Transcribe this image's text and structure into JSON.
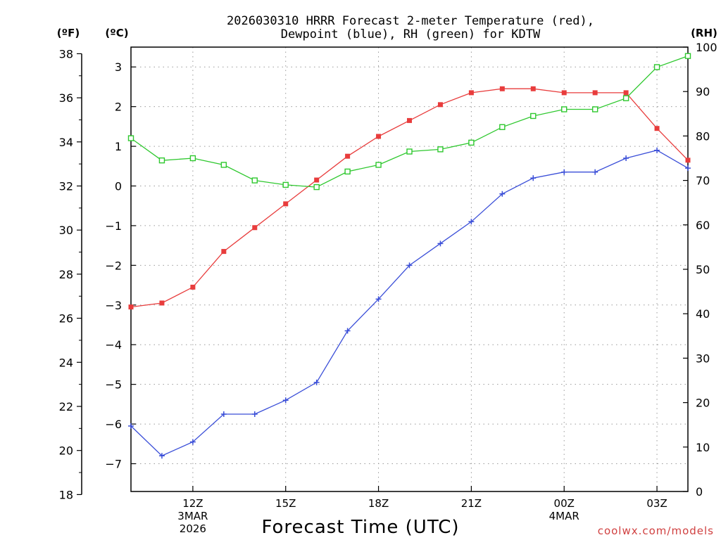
{
  "chart_data": {
    "type": "line",
    "title_line1": "2026030310 HRRR Forecast 2-meter Temperature (red),",
    "title_line2": "Dewpoint (blue), RH (green) for KDTW",
    "unit_left_f": "(ºF)",
    "unit_left_c": "(ºC)",
    "unit_right": "(RH)",
    "xlabel": "Forecast Time (UTC)",
    "credit": "coolwx.com/models",
    "x_hours": [
      10,
      11,
      12,
      13,
      14,
      15,
      16,
      17,
      18,
      19,
      20,
      21,
      22,
      23,
      24,
      25,
      26,
      27,
      28
    ],
    "x_ticks": [
      {
        "hour": 12,
        "lines": [
          "12Z",
          "3MAR",
          "2026"
        ]
      },
      {
        "hour": 15,
        "lines": [
          "15Z"
        ]
      },
      {
        "hour": 18,
        "lines": [
          "18Z"
        ]
      },
      {
        "hour": 21,
        "lines": [
          "21Z"
        ]
      },
      {
        "hour": 24,
        "lines": [
          "00Z",
          "4MAR"
        ]
      },
      {
        "hour": 27,
        "lines": [
          "03Z"
        ]
      }
    ],
    "xlim": [
      10,
      28
    ],
    "celsius_axis": {
      "ylim": [
        -7.7,
        3.5
      ],
      "ticks": [
        3,
        2,
        1,
        0,
        -1,
        -2,
        -3,
        -4,
        -5,
        -6,
        -7
      ],
      "tick_labels": [
        "3",
        "2",
        "1",
        "0",
        "−1",
        "−2",
        "−3",
        "−4",
        "−5",
        "−6",
        "−7"
      ]
    },
    "fahrenheit_axis": {
      "ticks": [
        38,
        36,
        34,
        32,
        30,
        28,
        26,
        24,
        22,
        20,
        18
      ]
    },
    "rh_axis": {
      "ylim": [
        0,
        100
      ],
      "ticks": [
        100,
        90,
        80,
        70,
        60,
        50,
        40,
        30,
        20,
        10,
        0
      ]
    },
    "series": [
      {
        "name": "Temperature",
        "axis": "celsius",
        "color": "#e83c3c",
        "marker": "filled-square",
        "values": [
          -3.05,
          -2.95,
          -2.55,
          -1.65,
          -1.05,
          -0.45,
          0.15,
          0.75,
          1.25,
          1.65,
          2.05,
          2.35,
          2.45,
          2.45,
          2.35,
          2.35,
          2.35,
          1.45,
          0.65
        ]
      },
      {
        "name": "Dewpoint",
        "axis": "celsius",
        "color": "#3a4ed8",
        "marker": "plus",
        "values": [
          -6.05,
          -6.8,
          -6.45,
          -5.75,
          -5.75,
          -5.4,
          -4.95,
          -3.65,
          -2.85,
          -2.0,
          -1.45,
          -0.9,
          -0.2,
          0.2,
          0.35,
          0.35,
          0.7,
          0.9,
          0.45
        ]
      },
      {
        "name": "RH",
        "axis": "rh",
        "color": "#2ec82e",
        "marker": "open-square",
        "values": [
          79.5,
          74.5,
          75.0,
          73.5,
          70.0,
          69.0,
          68.5,
          72.0,
          73.5,
          76.5,
          77.0,
          78.5,
          82.0,
          84.5,
          86.0,
          86.0,
          88.5,
          95.5,
          98.0
        ]
      }
    ]
  }
}
